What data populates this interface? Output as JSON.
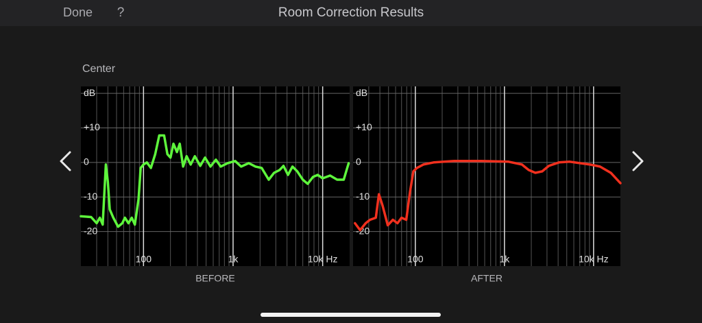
{
  "header": {
    "done": "Done",
    "help": "?",
    "title": "Room Correction Results"
  },
  "channel": "Center",
  "chart_data": [
    {
      "type": "line",
      "caption": "BEFORE",
      "color": "#5ef53c",
      "log_x": true,
      "grid": true,
      "xlim": [
        20,
        20000
      ],
      "ylim": [
        -30,
        22
      ],
      "xticks": [
        100,
        {
          "value": 1000,
          "label": "1k"
        },
        {
          "value": 10000,
          "label": "10k Hz"
        }
      ],
      "yticks": [
        {
          "value": 20,
          "label": "dB"
        },
        {
          "value": 10,
          "label": "+10"
        },
        0,
        -10,
        -20
      ],
      "x": [
        20,
        26,
        30,
        32.5,
        35,
        38,
        40,
        42,
        46,
        52,
        58,
        62,
        68,
        74,
        80,
        88,
        93,
        100,
        109,
        121,
        135,
        150,
        170,
        185,
        200,
        216,
        236,
        254,
        277,
        303,
        336,
        374,
        430,
        486,
        559,
        643,
        727,
        869,
        1054,
        1232,
        1498,
        1780,
        2085,
        2500,
        2870,
        3300,
        3650,
        4100,
        4600,
        5200,
        6000,
        6800,
        7800,
        8800,
        10000,
        12100,
        14500,
        17200,
        19500
      ],
      "values": [
        -15.6,
        -15.8,
        -17.6,
        -16,
        -18,
        -0.6,
        -5.6,
        -13.6,
        -16,
        -18.6,
        -17.6,
        -16,
        -17.6,
        -16,
        -18,
        -10.6,
        -1.6,
        -0.6,
        0,
        -1.6,
        2.4,
        7.8,
        7.8,
        2.4,
        1.4,
        5.4,
        3,
        5.4,
        -1.2,
        1.8,
        -0.6,
        1.8,
        -1,
        1.4,
        -1.2,
        0.8,
        -1.2,
        -0.2,
        0.4,
        -1.2,
        -0.2,
        -1.2,
        -1.6,
        -5,
        -3,
        -2.2,
        -1,
        -3.6,
        -1.2,
        -2.6,
        -5,
        -6.2,
        -4.2,
        -3.6,
        -4.6,
        -3.8,
        -5,
        -5,
        -0.2
      ]
    },
    {
      "type": "line",
      "caption": "AFTER",
      "color": "#f0301e",
      "log_x": true,
      "grid": true,
      "xlim": [
        20,
        20000
      ],
      "ylim": [
        -30,
        22
      ],
      "xticks": [
        100,
        {
          "value": 1000,
          "label": "1k"
        },
        {
          "value": 10000,
          "label": "10k Hz"
        }
      ],
      "yticks": [
        {
          "value": 20,
          "label": "dB"
        },
        {
          "value": 10,
          "label": "+10"
        },
        0,
        -10,
        -20
      ],
      "x": [
        21,
        24,
        27.7,
        31,
        36,
        39,
        43,
        49,
        56,
        63,
        70,
        79,
        87,
        95,
        104,
        123,
        161,
        272,
        550,
        1110,
        1570,
        1870,
        2220,
        2650,
        3140,
        4100,
        5400,
        7000,
        9100,
        11800,
        15600,
        20000
      ],
      "values": [
        -17.6,
        -19.6,
        -17.6,
        -16.6,
        -16,
        -9.2,
        -12.6,
        -18.2,
        -16.6,
        -17.6,
        -16,
        -16.6,
        -8.6,
        -2.6,
        -1.6,
        -0.6,
        0,
        0.4,
        0.4,
        0.2,
        -0.6,
        -2.2,
        -3,
        -2.6,
        -1,
        0,
        0.2,
        -0.2,
        -0.6,
        -1.2,
        -3,
        -6
      ]
    }
  ]
}
